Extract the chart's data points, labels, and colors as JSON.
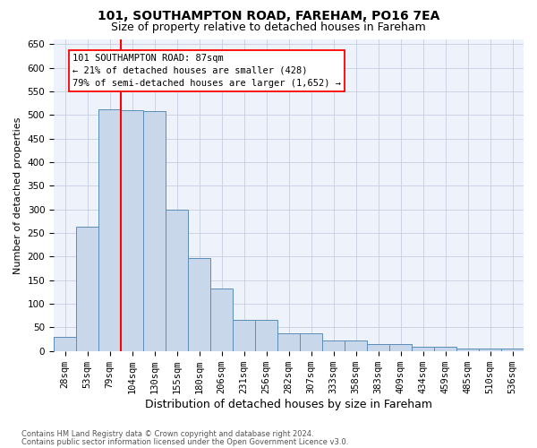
{
  "title": "101, SOUTHAMPTON ROAD, FAREHAM, PO16 7EA",
  "subtitle": "Size of property relative to detached houses in Fareham",
  "xlabel": "Distribution of detached houses by size in Fareham",
  "ylabel": "Number of detached properties",
  "bar_labels": [
    "28sqm",
    "53sqm",
    "79sqm",
    "104sqm",
    "130sqm",
    "155sqm",
    "180sqm",
    "206sqm",
    "231sqm",
    "256sqm",
    "282sqm",
    "307sqm",
    "333sqm",
    "358sqm",
    "383sqm",
    "409sqm",
    "434sqm",
    "459sqm",
    "485sqm",
    "510sqm",
    "536sqm"
  ],
  "bar_values": [
    30,
    263,
    512,
    511,
    508,
    300,
    197,
    133,
    65,
    65,
    37,
    37,
    22,
    22,
    15,
    15,
    9,
    9,
    5,
    5,
    5
  ],
  "bar_color": "#c8d8ea",
  "bar_edgecolor": "#5b8db8",
  "annotation_text": "101 SOUTHAMPTON ROAD: 87sqm\n← 21% of detached houses are smaller (428)\n79% of semi-detached houses are larger (1,652) →",
  "ylim": [
    0,
    660
  ],
  "yticks": [
    0,
    50,
    100,
    150,
    200,
    250,
    300,
    350,
    400,
    450,
    500,
    550,
    600,
    650
  ],
  "bg_color": "#eef2fa",
  "grid_color": "#c5cde0",
  "footnote1": "Contains HM Land Registry data © Crown copyright and database right 2024.",
  "footnote2": "Contains public sector information licensed under the Open Government Licence v3.0.",
  "title_fontsize": 10,
  "subtitle_fontsize": 9,
  "ylabel_fontsize": 8,
  "xlabel_fontsize": 9,
  "tick_fontsize": 7.5,
  "annot_fontsize": 7.5,
  "footnote_fontsize": 6
}
